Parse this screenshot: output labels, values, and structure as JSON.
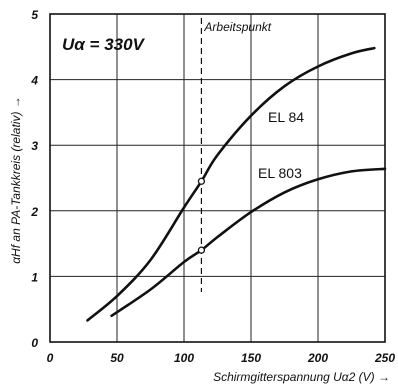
{
  "chart_data": {
    "type": "line",
    "condition_text": "Uα = 330V",
    "xlabel": "Schirmgitterspannung Uα2 (V) →",
    "ylabel": "αHf an PA-Tankkreis (relativ) →",
    "xlim": [
      0,
      250
    ],
    "ylim": [
      0,
      5
    ],
    "x_ticks": [
      "0",
      "50",
      "100",
      "150",
      "200",
      "250"
    ],
    "y_ticks": [
      "0",
      "1",
      "2",
      "3",
      "4",
      "5"
    ],
    "grid": true,
    "annotation": {
      "label": "Arbeitspunkt",
      "x": 113
    },
    "series": [
      {
        "name": "EL 84",
        "points": [
          [
            28,
            0.33
          ],
          [
            50,
            0.7
          ],
          [
            75,
            1.25
          ],
          [
            100,
            2.05
          ],
          [
            113,
            2.45
          ],
          [
            125,
            2.85
          ],
          [
            150,
            3.45
          ],
          [
            175,
            3.9
          ],
          [
            200,
            4.2
          ],
          [
            225,
            4.4
          ],
          [
            242,
            4.48
          ]
        ]
      },
      {
        "name": "EL 803",
        "points": [
          [
            46,
            0.4
          ],
          [
            75,
            0.8
          ],
          [
            100,
            1.22
          ],
          [
            113,
            1.4
          ],
          [
            125,
            1.6
          ],
          [
            150,
            1.98
          ],
          [
            175,
            2.28
          ],
          [
            200,
            2.48
          ],
          [
            225,
            2.6
          ],
          [
            250,
            2.64
          ]
        ]
      }
    ],
    "marked_points": [
      {
        "series": "EL 84",
        "x": 113,
        "y": 2.45
      },
      {
        "series": "EL 803",
        "x": 113,
        "y": 1.4
      }
    ]
  }
}
